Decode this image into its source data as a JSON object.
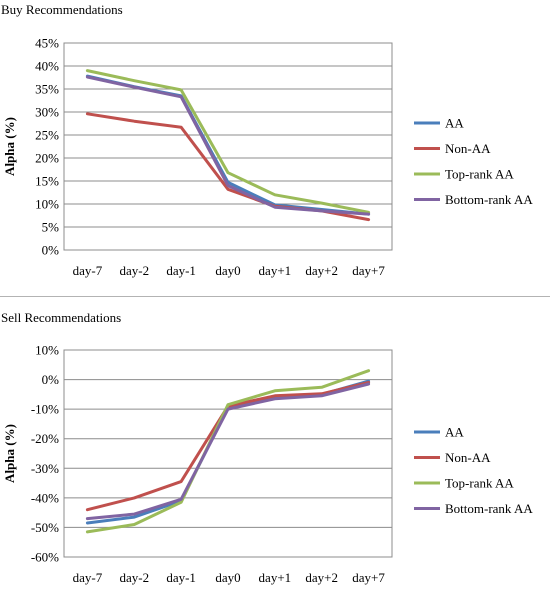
{
  "chart_data": [
    {
      "type": "line",
      "title": "Buy Recommendations",
      "xlabel": "",
      "ylabel": "Alpha (%)",
      "categories": [
        "day-7",
        "day-2",
        "day-1",
        "day0",
        "day+1",
        "day+2",
        "day+7"
      ],
      "ylim": [
        0,
        45
      ],
      "yticks": [
        "0%",
        "5%",
        "10%",
        "15%",
        "20%",
        "25%",
        "30%",
        "35%",
        "40%",
        "45%"
      ],
      "grid": true,
      "legend_position": "right",
      "series": [
        {
          "name": "AA",
          "color": "#4a7ebb",
          "values": [
            37.8,
            35.5,
            33.5,
            14.7,
            9.8,
            8.8,
            7.8
          ]
        },
        {
          "name": "Non-AA",
          "color": "#c0504d",
          "values": [
            29.6,
            28.0,
            26.7,
            13.2,
            9.5,
            8.5,
            6.6
          ]
        },
        {
          "name": "Top-rank AA",
          "color": "#9bbb59",
          "values": [
            39.0,
            36.8,
            34.8,
            16.8,
            12.0,
            10.2,
            8.2
          ]
        },
        {
          "name": "Bottom-rank AA",
          "color": "#8064a2",
          "values": [
            37.6,
            35.4,
            33.3,
            14.0,
            9.3,
            8.5,
            7.8
          ]
        }
      ]
    },
    {
      "type": "line",
      "title": "Sell Recommendations",
      "xlabel": "",
      "ylabel": "Alpha (%)",
      "categories": [
        "day-7",
        "day-2",
        "day-1",
        "day0",
        "day+1",
        "day+2",
        "day+7"
      ],
      "ylim": [
        -60,
        10
      ],
      "yticks": [
        "-60%",
        "-50%",
        "-40%",
        "-30%",
        "-20%",
        "-10%",
        "0%",
        "10%"
      ],
      "grid": true,
      "legend_position": "right",
      "series": [
        {
          "name": "AA",
          "color": "#4a7ebb",
          "values": [
            -48.5,
            -46.5,
            -41.0,
            -9.5,
            -6.0,
            -5.0,
            -0.5
          ]
        },
        {
          "name": "Non-AA",
          "color": "#c0504d",
          "values": [
            -44.0,
            -40.0,
            -34.5,
            -9.0,
            -5.5,
            -4.8,
            -1.0
          ]
        },
        {
          "name": "Top-rank AA",
          "color": "#9bbb59",
          "values": [
            -51.5,
            -49.0,
            -41.5,
            -8.5,
            -3.8,
            -2.6,
            3.0
          ]
        },
        {
          "name": "Bottom-rank AA",
          "color": "#8064a2",
          "values": [
            -47.0,
            -45.5,
            -40.5,
            -10.0,
            -6.5,
            -5.5,
            -1.5
          ]
        }
      ]
    }
  ]
}
